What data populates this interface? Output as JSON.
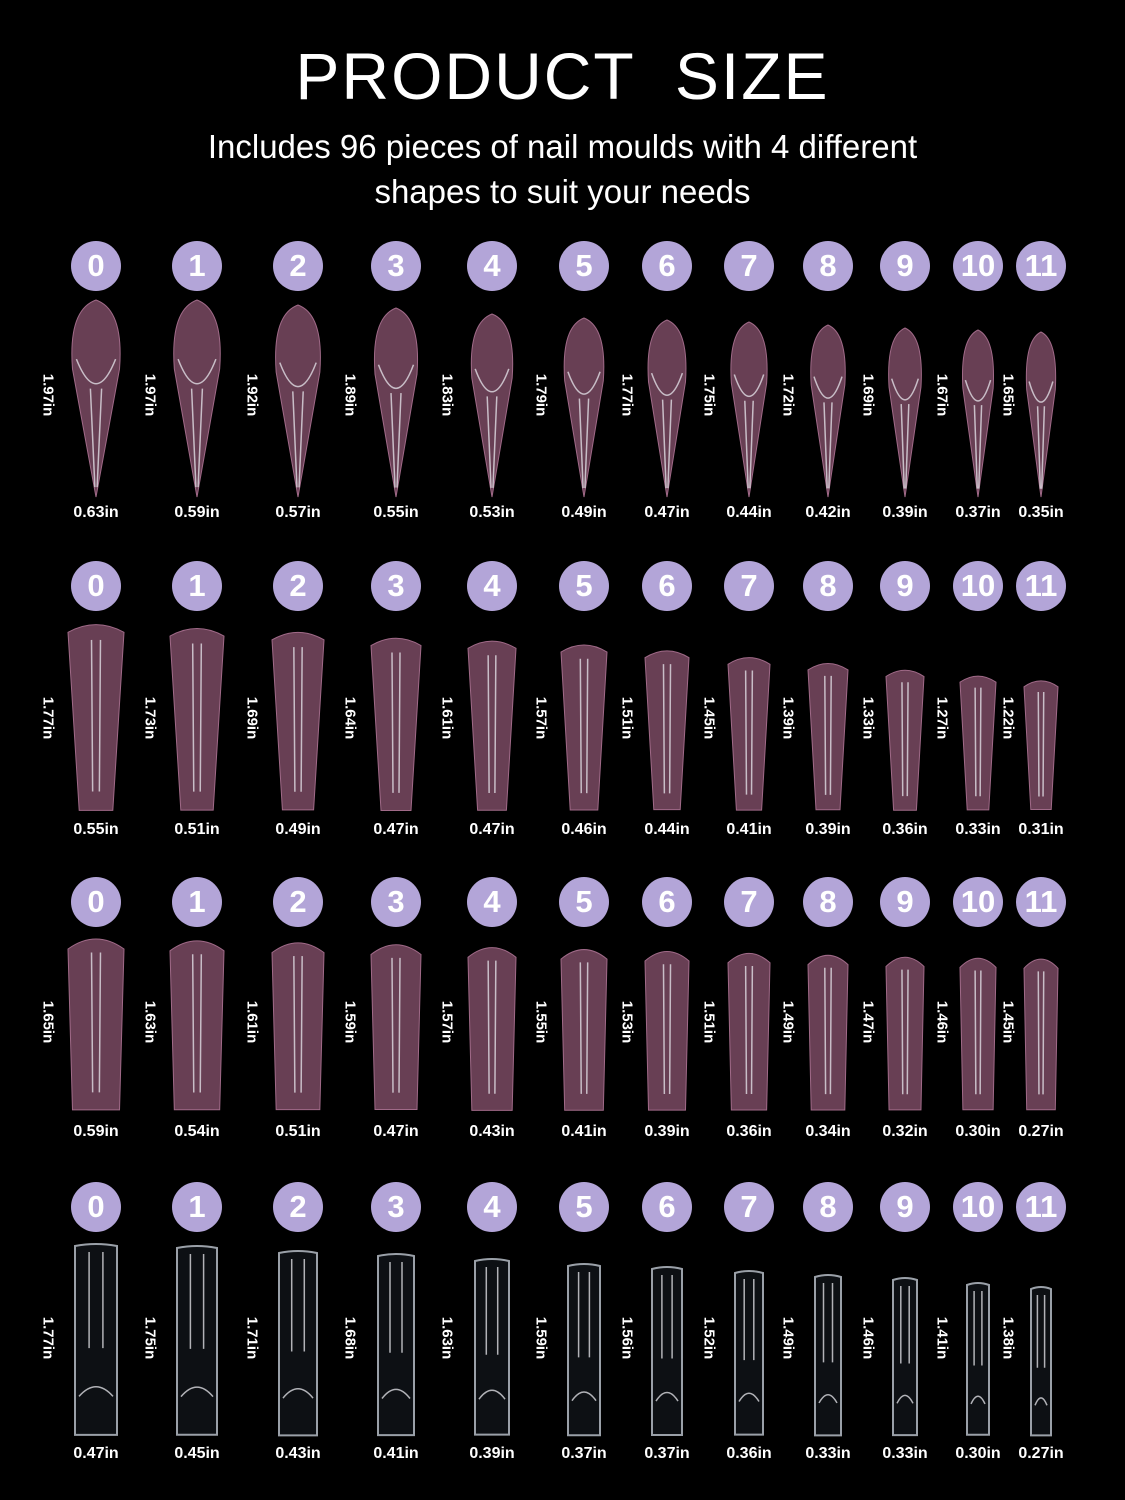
{
  "title": "PRODUCT SIZE",
  "subtitle_line1": "Includes 96 pieces of nail moulds with 4 different",
  "subtitle_line2": "shapes to suit your needs",
  "colors": {
    "badge": "#b3a5d8",
    "mould": "#7a4a63",
    "clear": "#9aa0a8",
    "background": "#000000"
  },
  "sizes": [
    "0",
    "1",
    "2",
    "3",
    "4",
    "5",
    "6",
    "7",
    "8",
    "9",
    "10",
    "11"
  ],
  "rows": [
    {
      "shape": "stiletto",
      "lengths": [
        "1.97in",
        "1.97in",
        "1.92in",
        "1.89in",
        "1.83in",
        "1.79in",
        "1.77in",
        "1.75in",
        "1.72in",
        "1.69in",
        "1.67in",
        "1.65in"
      ],
      "widths": [
        "0.63in",
        "0.59in",
        "0.57in",
        "0.55in",
        "0.53in",
        "0.49in",
        "0.47in",
        "0.44in",
        "0.42in",
        "0.39in",
        "0.37in",
        "0.35in"
      ]
    },
    {
      "shape": "coffin",
      "lengths": [
        "1.77in",
        "1.73in",
        "1.69in",
        "1.64in",
        "1.61in",
        "1.57in",
        "1.51in",
        "1.45in",
        "1.39in",
        "1.33in",
        "1.27in",
        "1.22in"
      ],
      "widths": [
        "0.55in",
        "0.51in",
        "0.49in",
        "0.47in",
        "0.47in",
        "0.46in",
        "0.44in",
        "0.41in",
        "0.39in",
        "0.36in",
        "0.33in",
        "0.31in"
      ]
    },
    {
      "shape": "square-round",
      "lengths": [
        "1.65in",
        "1.63in",
        "1.61in",
        "1.59in",
        "1.57in",
        "1.55in",
        "1.53in",
        "1.51in",
        "1.49in",
        "1.47in",
        "1.46in",
        "1.45in"
      ],
      "widths": [
        "0.59in",
        "0.54in",
        "0.51in",
        "0.47in",
        "0.43in",
        "0.41in",
        "0.39in",
        "0.36in",
        "0.34in",
        "0.32in",
        "0.30in",
        "0.27in"
      ]
    },
    {
      "shape": "square-clear",
      "lengths": [
        "1.77in",
        "1.75in",
        "1.71in",
        "1.68in",
        "1.63in",
        "1.59in",
        "1.56in",
        "1.52in",
        "1.49in",
        "1.46in",
        "1.41in",
        "1.38in"
      ],
      "widths": [
        "0.47in",
        "0.45in",
        "0.43in",
        "0.41in",
        "0.39in",
        "0.37in",
        "0.37in",
        "0.36in",
        "0.33in",
        "0.33in",
        "0.30in",
        "0.27in"
      ]
    }
  ]
}
